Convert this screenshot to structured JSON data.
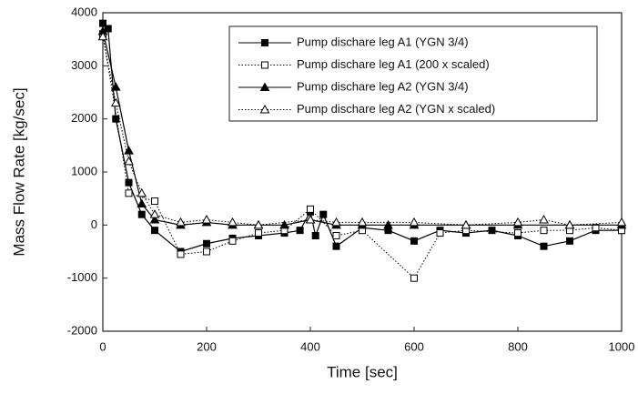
{
  "chart_data": {
    "type": "line",
    "xlabel": "Time [sec]",
    "ylabel": "Mass Flow Rate [kg/sec]",
    "xlim": [
      0,
      1000
    ],
    "xticks": [
      0,
      200,
      400,
      600,
      800,
      1000
    ],
    "ylim": [
      -2000,
      4000
    ],
    "yticks": [
      -2000,
      -1000,
      0,
      1000,
      2000,
      3000,
      4000
    ],
    "legend": "upper right",
    "series": [
      {
        "name": "Pump dischare leg A1 (YGN 3/4)",
        "color": "#000000",
        "dash": "solid",
        "marker": "square",
        "marker_filled": true,
        "x": [
          0,
          10,
          25,
          50,
          75,
          100,
          150,
          200,
          250,
          300,
          350,
          380,
          400,
          410,
          425,
          450,
          500,
          550,
          600,
          650,
          700,
          750,
          800,
          850,
          900,
          950,
          1000
        ],
        "values": [
          3800,
          3700,
          2000,
          800,
          200,
          -100,
          -500,
          -350,
          -250,
          -200,
          -150,
          -100,
          250,
          -200,
          200,
          -400,
          -50,
          -100,
          -300,
          -100,
          -150,
          -100,
          -200,
          -400,
          -300,
          -100,
          -100
        ]
      },
      {
        "name": "Pump dischare leg A1 (200 x scaled)",
        "color": "#000000",
        "dash": "dotted",
        "marker": "square",
        "marker_filled": false,
        "x": [
          0,
          50,
          100,
          150,
          200,
          250,
          300,
          350,
          400,
          450,
          500,
          600,
          650,
          700,
          800,
          850,
          900,
          950,
          1000
        ],
        "values": [
          3600,
          600,
          450,
          -550,
          -500,
          -300,
          -150,
          -100,
          300,
          -200,
          -100,
          -1000,
          -150,
          -100,
          -150,
          -100,
          -100,
          -50,
          -100
        ]
      },
      {
        "name": "Pump dischare leg A2 (YGN 3/4)",
        "color": "#000000",
        "dash": "solid",
        "marker": "triangle",
        "marker_filled": true,
        "x": [
          0,
          25,
          50,
          75,
          100,
          150,
          200,
          250,
          300,
          350,
          400,
          450,
          500,
          550,
          600,
          700,
          800,
          900,
          1000
        ],
        "values": [
          3650,
          2600,
          1400,
          400,
          100,
          0,
          50,
          0,
          0,
          0,
          100,
          0,
          0,
          0,
          0,
          0,
          0,
          0,
          0
        ]
      },
      {
        "name": "Pump dischare leg A2 (YGN x scaled)",
        "color": "#000000",
        "dash": "dotted",
        "marker": "triangle",
        "marker_filled": false,
        "x": [
          0,
          25,
          50,
          75,
          100,
          150,
          200,
          250,
          300,
          400,
          450,
          500,
          600,
          700,
          800,
          850,
          900,
          1000
        ],
        "values": [
          3550,
          2300,
          1200,
          600,
          200,
          50,
          100,
          50,
          0,
          100,
          50,
          50,
          50,
          0,
          50,
          100,
          0,
          50
        ]
      }
    ]
  }
}
